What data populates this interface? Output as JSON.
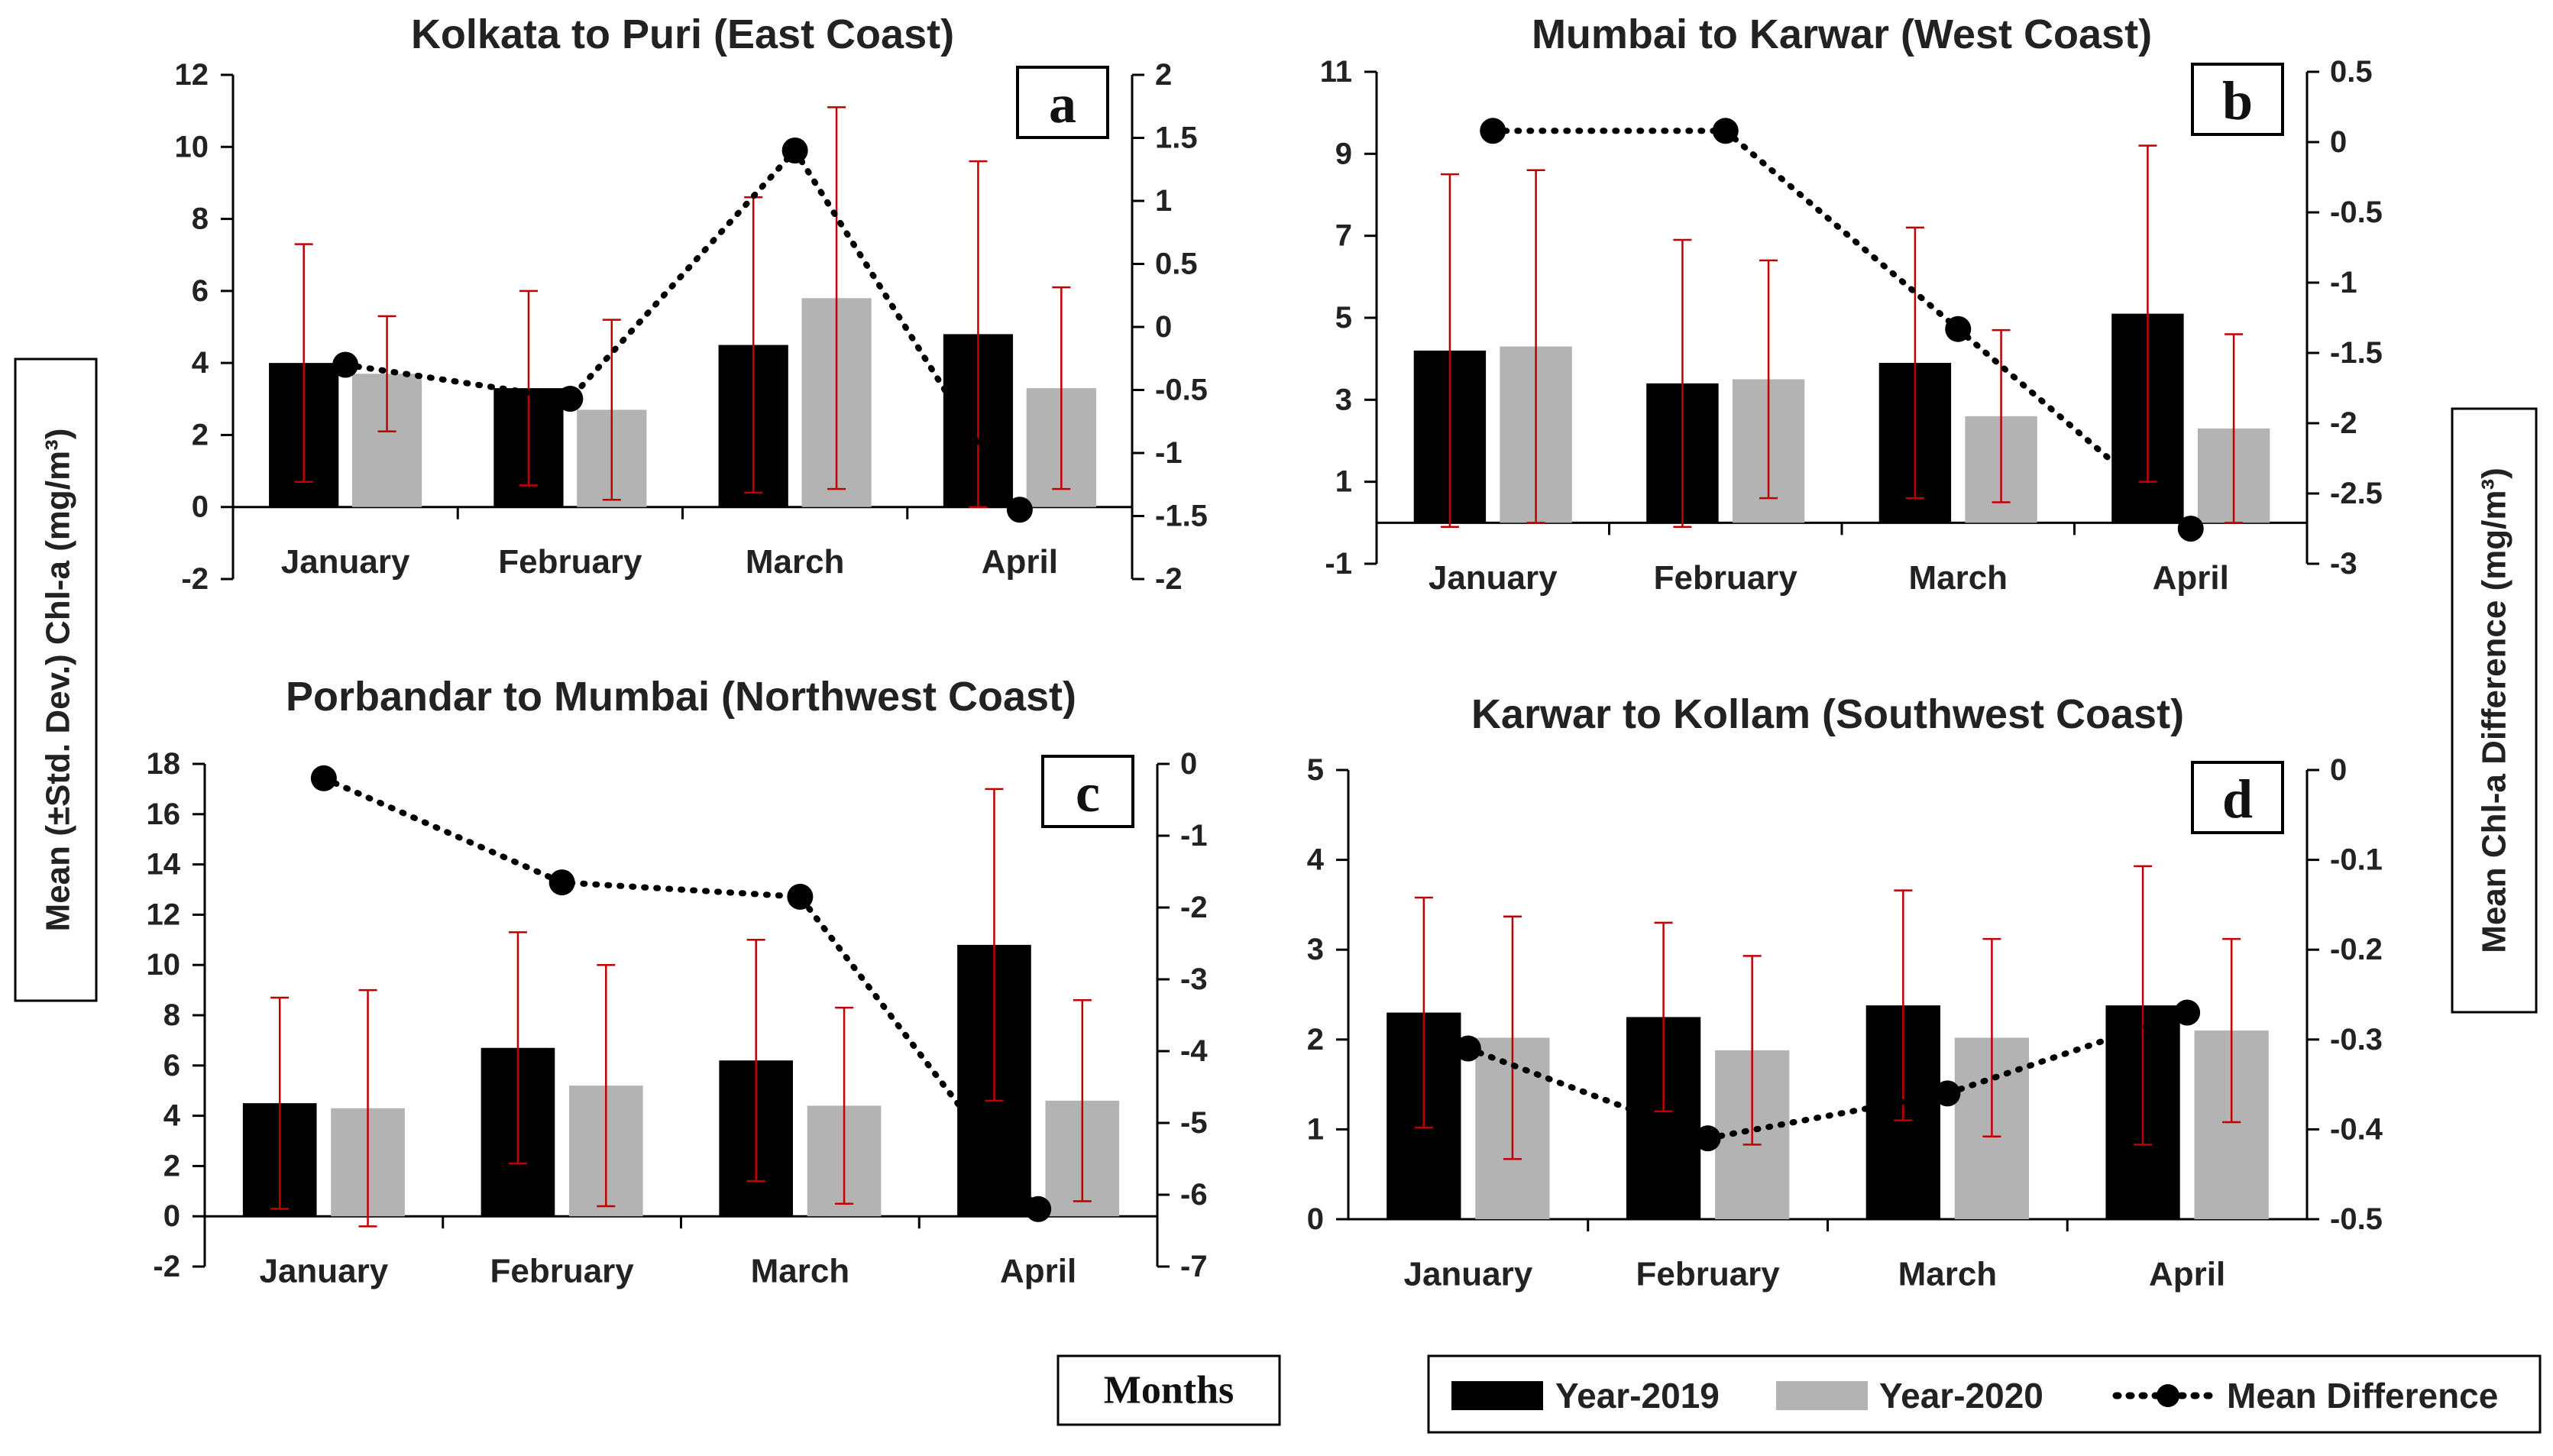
{
  "figure": {
    "y_left_label": "Mean (±Std. Dev.) Chl-a  (mg/m³)",
    "y_right_label": "Mean Chl-a Difference (mg/m³)",
    "x_label": "Months",
    "legend": {
      "year2019": "Year-2019",
      "year2020": "Year-2020",
      "mean_diff": "Mean Difference"
    },
    "colors": {
      "year2019": "#000000",
      "year2020": "#b3b3b3",
      "error_bar": "#c00000",
      "mean_diff": "#000000"
    }
  },
  "chart_data": [
    {
      "panel": "a",
      "type": "bar",
      "title": "Kolkata to Puri (East Coast)",
      "categories": [
        "January",
        "February",
        "March",
        "April"
      ],
      "ylim": [
        -2,
        12
      ],
      "yticks": [
        -2,
        0,
        2,
        4,
        6,
        8,
        10,
        12
      ],
      "y2lim": [
        -2,
        2
      ],
      "y2ticks": [
        -2,
        -1.5,
        -1,
        -0.5,
        0,
        0.5,
        1,
        1.5,
        2
      ],
      "series": [
        {
          "name": "Year-2019",
          "values": [
            4.0,
            3.3,
            4.5,
            4.8
          ],
          "errors": [
            3.3,
            2.7,
            4.1,
            4.8
          ]
        },
        {
          "name": "Year-2020",
          "values": [
            3.7,
            2.7,
            5.8,
            3.3
          ],
          "errors": [
            1.6,
            2.5,
            5.3,
            2.8
          ]
        }
      ],
      "mean_difference": [
        -0.3,
        -0.57,
        1.4,
        -1.45
      ]
    },
    {
      "panel": "b",
      "type": "bar",
      "title": "Mumbai to Karwar (West Coast)",
      "categories": [
        "January",
        "February",
        "March",
        "April"
      ],
      "ylim": [
        -1,
        11
      ],
      "yticks": [
        -1,
        1,
        3,
        5,
        7,
        9,
        11
      ],
      "y2lim": [
        -3,
        0.5
      ],
      "y2ticks": [
        -3,
        -2.5,
        -2,
        -1.5,
        -1,
        -0.5,
        0,
        0.5
      ],
      "series": [
        {
          "name": "Year-2019",
          "values": [
            4.2,
            3.4,
            3.9,
            5.1
          ],
          "errors": [
            4.3,
            3.5,
            3.3,
            4.1
          ]
        },
        {
          "name": "Year-2020",
          "values": [
            4.3,
            3.5,
            2.6,
            2.3
          ],
          "errors": [
            4.3,
            2.9,
            2.1,
            2.3
          ]
        }
      ],
      "mean_difference": [
        0.08,
        0.08,
        -1.33,
        -2.75
      ]
    },
    {
      "panel": "c",
      "type": "bar",
      "title": "Porbandar to Mumbai (Northwest Coast)",
      "categories": [
        "January",
        "February",
        "March",
        "April"
      ],
      "ylim": [
        -2,
        18
      ],
      "yticks": [
        -2,
        0,
        2,
        4,
        6,
        8,
        10,
        12,
        14,
        16,
        18
      ],
      "y2lim": [
        -7,
        0
      ],
      "y2ticks": [
        -7,
        -6,
        -5,
        -4,
        -3,
        -2,
        -1,
        0
      ],
      "series": [
        {
          "name": "Year-2019",
          "values": [
            4.5,
            6.7,
            6.2,
            10.8
          ],
          "errors": [
            4.2,
            4.6,
            4.8,
            6.2
          ]
        },
        {
          "name": "Year-2020",
          "values": [
            4.3,
            5.2,
            4.4,
            4.6
          ],
          "errors": [
            4.7,
            4.8,
            3.9,
            4.0
          ]
        }
      ],
      "mean_difference": [
        -0.2,
        -1.65,
        -1.85,
        -6.2
      ]
    },
    {
      "panel": "d",
      "type": "bar",
      "title": "Karwar to Kollam (Southwest Coast)",
      "categories": [
        "January",
        "February",
        "March",
        "April"
      ],
      "ylim": [
        0,
        5
      ],
      "yticks": [
        0,
        1,
        2,
        3,
        4,
        5
      ],
      "y2lim": [
        -0.5,
        0
      ],
      "y2ticks": [
        -0.5,
        -0.4,
        -0.3,
        -0.2,
        -0.1,
        0
      ],
      "series": [
        {
          "name": "Year-2019",
          "values": [
            2.3,
            2.25,
            2.38,
            2.38
          ],
          "errors": [
            1.28,
            1.05,
            1.28,
            1.55
          ]
        },
        {
          "name": "Year-2020",
          "values": [
            2.02,
            1.88,
            2.02,
            2.1
          ],
          "errors": [
            1.35,
            1.05,
            1.1,
            1.02
          ]
        }
      ],
      "mean_difference": [
        -0.31,
        -0.41,
        -0.36,
        -0.27
      ]
    }
  ]
}
